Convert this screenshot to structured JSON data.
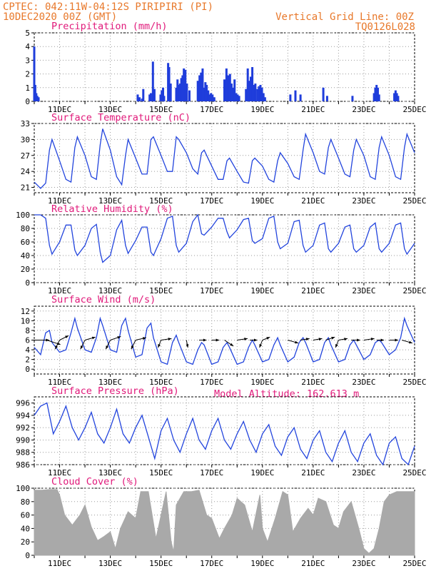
{
  "header": {
    "line1": "CPTEC:   042:11W-04:12S  PIRIPIRI (PI)",
    "line2": "10DEC2020 00Z (GMT)",
    "grid_note": "Vertical Grid Line: 00Z",
    "code": "TQ0126L028"
  },
  "colors": {
    "header": "#e8782a",
    "title": "#e0197a",
    "line": "#2244dd",
    "bars": "#1f3ddb",
    "cloud": "#a9a9a9",
    "arrows": "#000000",
    "grid": "#9a9a9a"
  },
  "x_axis": {
    "start_day": 10,
    "end_day": 25,
    "labels": [
      "11DEC",
      "13DEC",
      "15DEC",
      "17DEC",
      "19DEC",
      "21DEC",
      "23DEC",
      "25DEC"
    ],
    "label_days": [
      11,
      13,
      15,
      17,
      19,
      21,
      23,
      25
    ]
  },
  "model_altitude": "Model Altitude: 162.613 m",
  "chart_data": [
    {
      "id": "precip",
      "type": "bar",
      "title": "Precipitation (mm/h)",
      "ylim": [
        0,
        5
      ],
      "yticks": [
        "0",
        "1",
        "2",
        "3",
        "4",
        "5"
      ],
      "x": [
        10.0,
        10.04,
        10.08,
        10.12,
        10.17,
        14.08,
        14.15,
        14.25,
        14.3,
        14.55,
        14.6,
        14.68,
        14.74,
        14.98,
        15.03,
        15.08,
        15.12,
        15.28,
        15.32,
        15.38,
        15.6,
        15.65,
        15.7,
        15.75,
        15.8,
        15.85,
        15.9,
        15.96,
        16.02,
        16.12,
        16.45,
        16.52,
        16.58,
        16.64,
        16.7,
        16.75,
        16.8,
        16.86,
        16.92,
        16.97,
        17.03,
        17.1,
        17.5,
        17.58,
        17.65,
        17.72,
        17.78,
        17.84,
        17.9,
        17.96,
        18.02,
        18.08,
        18.35,
        18.42,
        18.48,
        18.54,
        18.6,
        18.66,
        18.72,
        18.8,
        18.86,
        18.92,
        18.98,
        19.04,
        19.1,
        20.1,
        20.3,
        20.5,
        21.4,
        21.55,
        22.55,
        23.4,
        23.45,
        23.5,
        23.55,
        23.6,
        24.2,
        24.25,
        24.3,
        24.35
      ],
      "values": [
        4.0,
        1.2,
        0.6,
        0.4,
        0.3,
        0.5,
        0.3,
        0.2,
        0.9,
        0.5,
        0.6,
        2.9,
        0.9,
        0.5,
        0.8,
        1.0,
        0.4,
        2.8,
        2.5,
        1.3,
        1.0,
        1.6,
        1.2,
        1.3,
        1.7,
        1.9,
        2.4,
        2.3,
        1.3,
        0.8,
        1.5,
        1.9,
        2.1,
        2.4,
        1.0,
        1.4,
        1.2,
        0.8,
        0.5,
        0.6,
        0.5,
        0.3,
        1.6,
        2.4,
        1.9,
        2.0,
        1.3,
        1.0,
        1.6,
        0.6,
        0.5,
        0.4,
        0.9,
        2.4,
        1.5,
        1.8,
        2.5,
        1.2,
        1.3,
        0.9,
        1.1,
        1.2,
        1.0,
        0.6,
        0.3,
        0.5,
        0.8,
        0.5,
        1.0,
        0.4,
        0.4,
        0.6,
        1.0,
        1.2,
        1.0,
        0.5,
        0.6,
        0.8,
        0.6,
        0.4
      ]
    },
    {
      "id": "temp",
      "type": "line",
      "title": "Surface Temperature (nC)",
      "ylim": [
        20,
        33
      ],
      "yticks": [
        "21",
        "24",
        "27",
        "30",
        "33"
      ],
      "x": [
        10.0,
        10.25,
        10.45,
        10.6,
        10.7,
        11.0,
        11.25,
        11.45,
        11.6,
        11.7,
        12.0,
        12.25,
        12.45,
        12.6,
        12.7,
        13.0,
        13.25,
        13.45,
        13.6,
        13.7,
        14.0,
        14.25,
        14.45,
        14.6,
        14.7,
        15.0,
        15.25,
        15.45,
        15.6,
        15.7,
        16.0,
        16.25,
        16.45,
        16.6,
        16.7,
        17.0,
        17.25,
        17.45,
        17.6,
        17.7,
        18.0,
        18.25,
        18.45,
        18.6,
        18.7,
        19.0,
        19.25,
        19.45,
        19.6,
        19.7,
        20.0,
        20.25,
        20.45,
        20.6,
        20.7,
        21.0,
        21.25,
        21.45,
        21.6,
        21.7,
        22.0,
        22.25,
        22.45,
        22.6,
        22.7,
        23.0,
        23.25,
        23.45,
        23.6,
        23.7,
        24.0,
        24.25,
        24.45,
        24.6,
        24.7,
        25.0
      ],
      "values": [
        22.0,
        20.8,
        21.8,
        28.0,
        30.0,
        26.0,
        22.5,
        22.0,
        28.5,
        30.5,
        27.0,
        23.0,
        22.5,
        29.0,
        32.0,
        28.0,
        23.0,
        21.5,
        27.0,
        30.0,
        26.5,
        23.5,
        23.5,
        30.0,
        30.5,
        27.0,
        24.0,
        24.0,
        30.5,
        30.0,
        27.5,
        24.5,
        23.5,
        27.5,
        28.0,
        25.0,
        22.5,
        22.5,
        26.0,
        26.5,
        24.0,
        22.0,
        21.8,
        26.0,
        26.5,
        25.0,
        22.5,
        22.0,
        26.0,
        27.5,
        25.5,
        23.0,
        22.5,
        28.0,
        31.0,
        27.5,
        24.0,
        23.5,
        28.5,
        30.0,
        26.5,
        23.5,
        23.0,
        28.0,
        30.0,
        27.0,
        23.0,
        22.5,
        28.5,
        30.5,
        27.0,
        23.0,
        22.5,
        28.5,
        31.0,
        27.5
      ]
    },
    {
      "id": "rh",
      "type": "line",
      "title": "Relative Humidity (%)",
      "ylim": [
        0,
        100
      ],
      "yticks": [
        "0",
        "20",
        "40",
        "60",
        "80",
        "100"
      ],
      "x": [
        10.0,
        10.25,
        10.45,
        10.6,
        10.7,
        11.0,
        11.25,
        11.45,
        11.6,
        11.7,
        12.0,
        12.25,
        12.45,
        12.6,
        12.7,
        13.0,
        13.25,
        13.45,
        13.6,
        13.7,
        14.0,
        14.25,
        14.45,
        14.6,
        14.7,
        15.0,
        15.25,
        15.45,
        15.6,
        15.7,
        16.0,
        16.25,
        16.45,
        16.6,
        16.7,
        17.0,
        17.25,
        17.45,
        17.6,
        17.7,
        18.0,
        18.25,
        18.45,
        18.6,
        18.7,
        19.0,
        19.25,
        19.45,
        19.6,
        19.7,
        20.0,
        20.25,
        20.45,
        20.6,
        20.7,
        21.0,
        21.25,
        21.45,
        21.6,
        21.7,
        22.0,
        22.25,
        22.45,
        22.6,
        22.7,
        23.0,
        23.25,
        23.45,
        23.6,
        23.7,
        24.0,
        24.25,
        24.45,
        24.6,
        24.7,
        25.0
      ],
      "values": [
        100,
        100,
        95,
        55,
        42,
        60,
        85,
        85,
        48,
        40,
        55,
        80,
        86,
        45,
        30,
        40,
        78,
        92,
        55,
        43,
        62,
        82,
        82,
        45,
        40,
        65,
        95,
        98,
        55,
        45,
        58,
        90,
        100,
        72,
        70,
        82,
        95,
        95,
        75,
        66,
        78,
        93,
        95,
        62,
        58,
        65,
        95,
        98,
        60,
        50,
        58,
        90,
        92,
        55,
        45,
        55,
        85,
        88,
        50,
        45,
        58,
        82,
        85,
        50,
        45,
        55,
        82,
        88,
        50,
        45,
        58,
        85,
        88,
        50,
        42,
        58
      ]
    },
    {
      "id": "wind",
      "type": "line",
      "title": "Surface Wind (m/s)",
      "ylim": [
        -1,
        13
      ],
      "yticks": [
        "0",
        "2",
        "4",
        "6",
        "8",
        "10",
        "12"
      ],
      "x": [
        10.0,
        10.25,
        10.45,
        10.6,
        10.7,
        11.0,
        11.25,
        11.45,
        11.6,
        11.7,
        12.0,
        12.25,
        12.45,
        12.6,
        12.7,
        13.0,
        13.25,
        13.45,
        13.6,
        13.7,
        14.0,
        14.25,
        14.45,
        14.6,
        14.7,
        15.0,
        15.25,
        15.45,
        15.6,
        15.7,
        16.0,
        16.25,
        16.45,
        16.6,
        16.7,
        17.0,
        17.25,
        17.45,
        17.6,
        17.7,
        18.0,
        18.25,
        18.45,
        18.6,
        18.7,
        19.0,
        19.25,
        19.45,
        19.6,
        19.7,
        20.0,
        20.25,
        20.45,
        20.6,
        20.7,
        21.0,
        21.25,
        21.45,
        21.6,
        21.7,
        22.0,
        22.25,
        22.45,
        22.6,
        22.7,
        23.0,
        23.25,
        23.45,
        23.6,
        23.7,
        24.0,
        24.25,
        24.45,
        24.6,
        24.7,
        25.0
      ],
      "values": [
        4.5,
        3.0,
        7.5,
        8.0,
        5.5,
        3.5,
        4.0,
        7.5,
        10.5,
        8.5,
        4.0,
        3.5,
        6.5,
        10.5,
        9.0,
        4.0,
        3.5,
        9.0,
        10.5,
        8.0,
        2.5,
        3.0,
        8.5,
        9.5,
        6.5,
        1.5,
        1.0,
        5.5,
        7.0,
        5.5,
        1.5,
        1.0,
        4.0,
        5.5,
        5.0,
        1.0,
        1.5,
        4.5,
        5.5,
        4.5,
        1.0,
        1.5,
        4.5,
        6.0,
        5.0,
        1.5,
        2.0,
        5.0,
        6.5,
        5.0,
        1.5,
        2.5,
        5.5,
        6.5,
        5.5,
        1.5,
        2.0,
        5.5,
        6.5,
        5.0,
        1.5,
        2.0,
        5.0,
        6.0,
        5.0,
        2.0,
        3.0,
        5.5,
        6.0,
        5.5,
        3.0,
        4.0,
        6.5,
        10.5,
        9.0,
        5.5
      ],
      "arrows": [
        {
          "day": 10.0,
          "y": 6.0,
          "u": 5.0,
          "v": 0.0
        },
        {
          "day": 10.5,
          "y": 6.0,
          "u": 4.5,
          "v": -1.5
        },
        {
          "day": 11.0,
          "y": 6.0,
          "u": -1.5,
          "v": -3.0
        },
        {
          "day": 11.0,
          "y": 6.0,
          "u": 3.0,
          "v": 1.5
        },
        {
          "day": 12.0,
          "y": 6.0,
          "u": -1.5,
          "v": -3.0
        },
        {
          "day": 12.0,
          "y": 6.0,
          "u": 3.5,
          "v": 1.0
        },
        {
          "day": 13.0,
          "y": 6.0,
          "u": -1.5,
          "v": -3.0
        },
        {
          "day": 13.0,
          "y": 6.0,
          "u": 3.5,
          "v": 1.2
        },
        {
          "day": 14.0,
          "y": 6.0,
          "u": -1.5,
          "v": -3.0
        },
        {
          "day": 14.0,
          "y": 6.0,
          "u": 3.5,
          "v": 0.8
        },
        {
          "day": 15.0,
          "y": 6.0,
          "u": -1.0,
          "v": -2.5
        },
        {
          "day": 15.0,
          "y": 6.0,
          "u": 3.5,
          "v": 0.5
        },
        {
          "day": 16.0,
          "y": 6.0,
          "u": 0.5,
          "v": -2.5
        },
        {
          "day": 16.5,
          "y": 6.0,
          "u": 2.5,
          "v": 0.0
        },
        {
          "day": 17.0,
          "y": 6.0,
          "u": 2.5,
          "v": 0.0
        },
        {
          "day": 17.5,
          "y": 6.0,
          "u": 3.0,
          "v": -2.0
        },
        {
          "day": 18.0,
          "y": 6.0,
          "u": 3.5,
          "v": 0.5
        },
        {
          "day": 18.5,
          "y": 6.0,
          "u": 2.5,
          "v": 0.0
        },
        {
          "day": 19.0,
          "y": 6.0,
          "u": -1.0,
          "v": -2.5
        },
        {
          "day": 19.0,
          "y": 6.0,
          "u": 2.5,
          "v": 1.0
        },
        {
          "day": 20.0,
          "y": 6.0,
          "u": 3.5,
          "v": -1.0
        },
        {
          "day": 20.5,
          "y": 6.0,
          "u": 3.0,
          "v": 0.5
        },
        {
          "day": 21.0,
          "y": 6.0,
          "u": 3.0,
          "v": 0.5
        },
        {
          "day": 21.5,
          "y": 6.0,
          "u": 3.0,
          "v": 1.0
        },
        {
          "day": 22.0,
          "y": 6.0,
          "u": -1.0,
          "v": -2.5
        },
        {
          "day": 22.0,
          "y": 6.0,
          "u": 3.0,
          "v": 0.5
        },
        {
          "day": 22.5,
          "y": 6.0,
          "u": 3.0,
          "v": 0.0
        },
        {
          "day": 23.0,
          "y": 6.0,
          "u": 3.5,
          "v": 0.5
        },
        {
          "day": 23.5,
          "y": 6.0,
          "u": 2.5,
          "v": 0.0
        },
        {
          "day": 24.0,
          "y": 6.0,
          "u": 3.0,
          "v": 0.0
        },
        {
          "day": 24.5,
          "y": 6.0,
          "u": 3.5,
          "v": -1.0
        }
      ]
    },
    {
      "id": "pres",
      "type": "line",
      "title": "Surface Pressure (hPa)",
      "ylim": [
        986,
        997
      ],
      "yticks": [
        "986",
        "988",
        "990",
        "992",
        "994",
        "996"
      ],
      "x": [
        10.0,
        10.25,
        10.5,
        10.75,
        11.0,
        11.25,
        11.5,
        11.75,
        12.0,
        12.25,
        12.5,
        12.75,
        13.0,
        13.25,
        13.5,
        13.75,
        14.0,
        14.25,
        14.5,
        14.75,
        15.0,
        15.25,
        15.5,
        15.75,
        16.0,
        16.25,
        16.5,
        16.75,
        17.0,
        17.25,
        17.5,
        17.75,
        18.0,
        18.25,
        18.5,
        18.75,
        19.0,
        19.25,
        19.5,
        19.75,
        20.0,
        20.25,
        20.5,
        20.75,
        21.0,
        21.25,
        21.5,
        21.75,
        22.0,
        22.25,
        22.5,
        22.75,
        23.0,
        23.25,
        23.5,
        23.75,
        24.0,
        24.25,
        24.5,
        24.75,
        25.0
      ],
      "values": [
        994.0,
        995.5,
        996.0,
        991.0,
        993.0,
        995.5,
        992.0,
        990.0,
        992.0,
        994.5,
        991.0,
        989.5,
        992.0,
        995.0,
        991.0,
        989.5,
        992.0,
        994.0,
        990.5,
        987.0,
        991.5,
        993.5,
        990.0,
        988.0,
        991.0,
        993.5,
        990.0,
        988.5,
        991.5,
        993.5,
        990.0,
        988.5,
        991.0,
        993.0,
        990.0,
        988.0,
        991.0,
        992.5,
        989.0,
        987.5,
        990.5,
        992.0,
        988.5,
        987.0,
        990.0,
        991.5,
        988.0,
        986.5,
        989.5,
        991.5,
        988.0,
        986.5,
        989.5,
        991.0,
        987.5,
        986.0,
        989.5,
        990.5,
        987.0,
        986.0,
        989.0
      ]
    },
    {
      "id": "cloud",
      "type": "area",
      "title": "Cloud Cover (%)",
      "ylim": [
        0,
        100
      ],
      "yticks": [
        "0",
        "20",
        "40",
        "60",
        "80",
        "100"
      ],
      "x": [
        10.0,
        10.3,
        10.6,
        10.9,
        11.0,
        11.2,
        11.5,
        11.8,
        12.0,
        12.25,
        12.5,
        12.75,
        13.0,
        13.2,
        13.4,
        13.7,
        14.0,
        14.2,
        14.5,
        14.8,
        15.0,
        15.2,
        15.4,
        15.5,
        15.6,
        15.9,
        16.0,
        16.2,
        16.5,
        16.8,
        17.0,
        17.3,
        17.5,
        17.8,
        18.0,
        18.3,
        18.6,
        18.9,
        19.0,
        19.2,
        19.5,
        19.8,
        20.0,
        20.2,
        20.5,
        20.8,
        21.0,
        21.2,
        21.5,
        21.8,
        22.0,
        22.2,
        22.5,
        22.8,
        23.0,
        23.2,
        23.4,
        23.6,
        23.8,
        24.0,
        24.3,
        24.6,
        24.9,
        25.0
      ],
      "values": [
        97,
        97,
        98,
        98,
        90,
        60,
        45,
        60,
        75,
        42,
        22,
        28,
        35,
        10,
        40,
        65,
        55,
        95,
        95,
        25,
        60,
        95,
        20,
        5,
        75,
        95,
        95,
        95,
        97,
        60,
        55,
        25,
        40,
        60,
        85,
        75,
        35,
        90,
        40,
        20,
        55,
        95,
        90,
        35,
        55,
        70,
        60,
        85,
        80,
        45,
        40,
        65,
        80,
        40,
        10,
        3,
        10,
        40,
        80,
        90,
        95,
        95,
        95,
        95
      ]
    }
  ]
}
